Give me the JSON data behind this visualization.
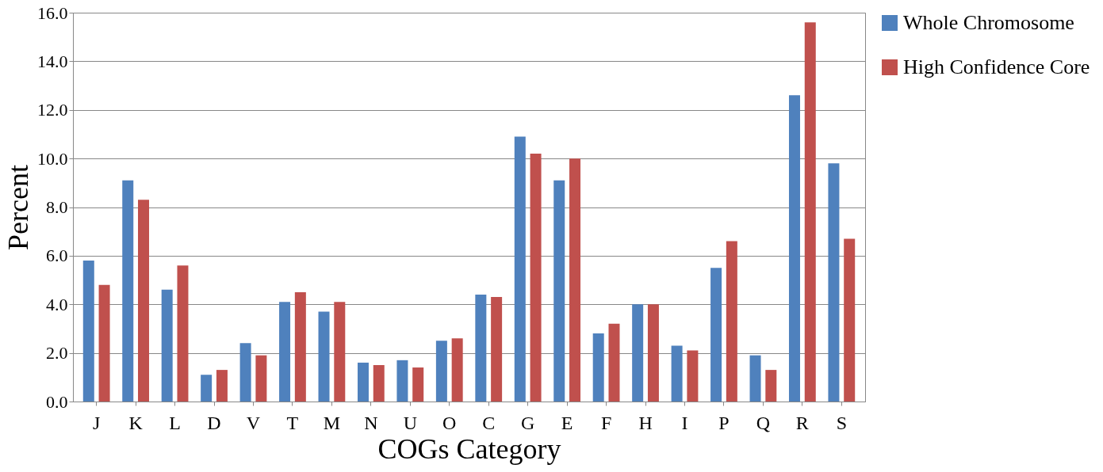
{
  "chart_data": {
    "type": "bar",
    "xlabel": "COGs Category",
    "ylabel": "Percent",
    "categories": [
      "J",
      "K",
      "L",
      "D",
      "V",
      "T",
      "M",
      "N",
      "U",
      "O",
      "C",
      "G",
      "E",
      "F",
      "H",
      "I",
      "P",
      "Q",
      "R",
      "S"
    ],
    "series": [
      {
        "name": "Whole Chromosome",
        "color": "#4f81bd",
        "values": [
          5.8,
          9.1,
          4.6,
          1.1,
          2.4,
          4.1,
          3.7,
          1.6,
          1.7,
          2.5,
          4.4,
          10.9,
          9.1,
          2.8,
          4.0,
          2.3,
          5.5,
          1.9,
          12.6,
          9.8
        ]
      },
      {
        "name": "High Confidence Core",
        "color": "#c0504d",
        "values": [
          4.8,
          8.3,
          5.6,
          1.3,
          1.9,
          4.5,
          4.1,
          1.5,
          1.4,
          2.6,
          4.3,
          10.2,
          10.0,
          3.2,
          4.0,
          2.1,
          6.6,
          1.3,
          15.6,
          6.7
        ]
      }
    ],
    "ylim": [
      0,
      16
    ],
    "yticks": [
      {
        "value": 0,
        "label": "0.0"
      },
      {
        "value": 2,
        "label": "2.0"
      },
      {
        "value": 4,
        "label": "4.0"
      },
      {
        "value": 6,
        "label": "6.0"
      },
      {
        "value": 8,
        "label": "8.0"
      },
      {
        "value": 10,
        "label": "10.0"
      },
      {
        "value": 12,
        "label": "12.0"
      },
      {
        "value": 14,
        "label": "14.0"
      },
      {
        "value": 16,
        "label": "16.0"
      }
    ],
    "grid": "y",
    "legend": "right"
  }
}
